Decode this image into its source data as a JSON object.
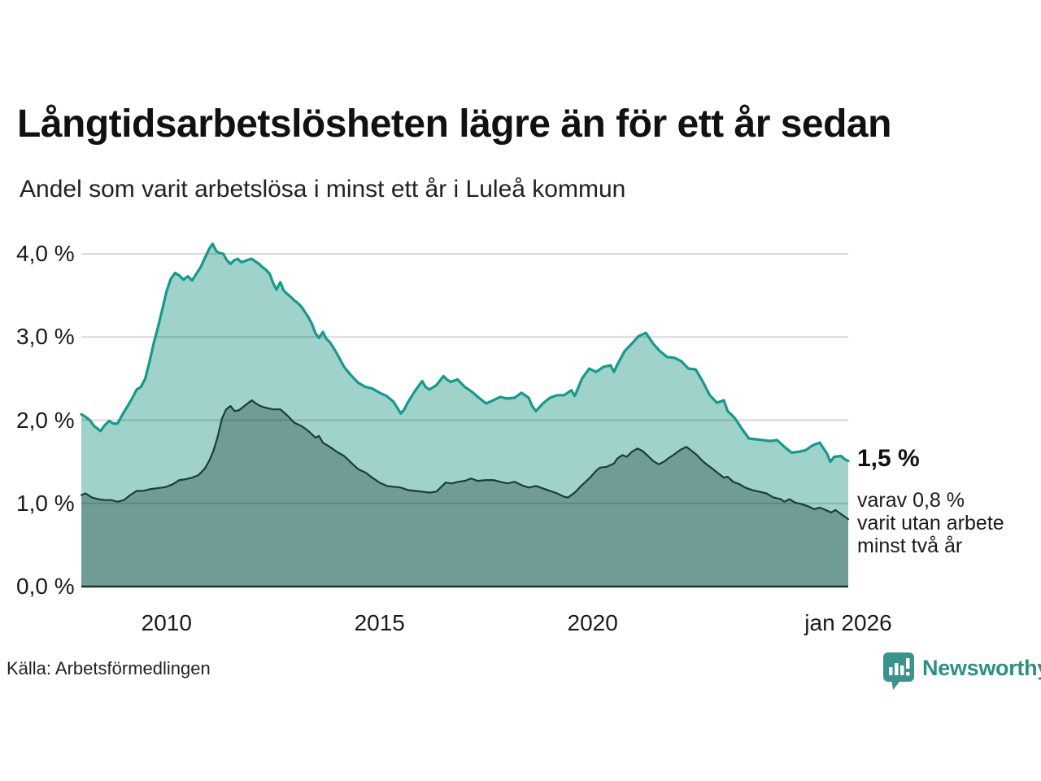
{
  "header": {
    "title": "Långtidsarbetslösheten lägre än för ett år sedan",
    "subtitle": "Andel som varit arbetslösa i minst ett år i Luleå kommun"
  },
  "annotation": {
    "total_label": "1,5 %",
    "detail_lines": [
      "varav 0,8 %",
      "varit utan arbete",
      "minst två år"
    ]
  },
  "footer": {
    "source": "Källa: Arbetsförmedlingen",
    "brand": "Newsworthy",
    "brand_icon": "newsworthy-bubble-barchart-icon",
    "brand_color": "#2e8f86",
    "brand_bubble_color": "#3a948b"
  },
  "colors": {
    "background": "#ffffff",
    "grid": "rgba(0,0,0,0.15)",
    "baseline": "#223332",
    "text": "#1a1a1a"
  },
  "chart_data": {
    "type": "area",
    "title": "Långtidsarbetslösheten lägre än för ett år sedan",
    "subtitle": "Andel som varit arbetslösa i minst ett år i Luleå kommun",
    "unit": "%",
    "xlabel": "",
    "ylabel": "",
    "xlim": [
      2008.0,
      2026.0
    ],
    "ylim": [
      0,
      4.3
    ],
    "grid": true,
    "legend_position": "none",
    "x_ticks": [
      {
        "year": 2010.0,
        "label": "2010"
      },
      {
        "year": 2015.0,
        "label": "2015"
      },
      {
        "year": 2020.0,
        "label": "2020"
      },
      {
        "year": 2026.0,
        "label": "jan 2026"
      }
    ],
    "y_ticks": [
      {
        "value": 0,
        "label": "0,0 %"
      },
      {
        "value": 1,
        "label": "1,0 %"
      },
      {
        "value": 2,
        "label": "2,0 %"
      },
      {
        "value": 3,
        "label": "3,0 %"
      },
      {
        "value": 4,
        "label": "4,0 %"
      }
    ],
    "series": [
      {
        "name": "Arbetslösa minst ett år",
        "end_value_label": "1,5 %",
        "line_color": "#17998b",
        "fill_color": "#9fd2ca",
        "line_width": 3.2,
        "points": [
          [
            2008.0,
            2.07
          ],
          [
            2008.1,
            2.04
          ],
          [
            2008.2,
            2.0
          ],
          [
            2008.3,
            1.93
          ],
          [
            2008.45,
            1.87
          ],
          [
            2008.55,
            1.94
          ],
          [
            2008.65,
            1.99
          ],
          [
            2008.75,
            1.96
          ],
          [
            2008.85,
            1.96
          ],
          [
            2009.0,
            2.1
          ],
          [
            2009.1,
            2.18
          ],
          [
            2009.2,
            2.27
          ],
          [
            2009.3,
            2.37
          ],
          [
            2009.4,
            2.4
          ],
          [
            2009.5,
            2.5
          ],
          [
            2009.6,
            2.7
          ],
          [
            2009.7,
            2.93
          ],
          [
            2009.8,
            3.12
          ],
          [
            2009.9,
            3.33
          ],
          [
            2010.0,
            3.55
          ],
          [
            2010.1,
            3.7
          ],
          [
            2010.2,
            3.77
          ],
          [
            2010.3,
            3.74
          ],
          [
            2010.4,
            3.69
          ],
          [
            2010.5,
            3.73
          ],
          [
            2010.6,
            3.68
          ],
          [
            2010.7,
            3.76
          ],
          [
            2010.8,
            3.84
          ],
          [
            2010.9,
            3.95
          ],
          [
            2011.0,
            4.06
          ],
          [
            2011.08,
            4.12
          ],
          [
            2011.17,
            4.03
          ],
          [
            2011.25,
            4.01
          ],
          [
            2011.33,
            4.0
          ],
          [
            2011.42,
            3.92
          ],
          [
            2011.5,
            3.88
          ],
          [
            2011.58,
            3.92
          ],
          [
            2011.67,
            3.94
          ],
          [
            2011.75,
            3.9
          ],
          [
            2011.83,
            3.91
          ],
          [
            2011.92,
            3.93
          ],
          [
            2012.0,
            3.94
          ],
          [
            2012.08,
            3.91
          ],
          [
            2012.17,
            3.88
          ],
          [
            2012.25,
            3.84
          ],
          [
            2012.33,
            3.81
          ],
          [
            2012.42,
            3.76
          ],
          [
            2012.5,
            3.65
          ],
          [
            2012.58,
            3.57
          ],
          [
            2012.67,
            3.66
          ],
          [
            2012.75,
            3.56
          ],
          [
            2012.83,
            3.52
          ],
          [
            2012.92,
            3.48
          ],
          [
            2013.0,
            3.44
          ],
          [
            2013.08,
            3.41
          ],
          [
            2013.17,
            3.36
          ],
          [
            2013.25,
            3.3
          ],
          [
            2013.33,
            3.24
          ],
          [
            2013.42,
            3.15
          ],
          [
            2013.5,
            3.04
          ],
          [
            2013.58,
            2.99
          ],
          [
            2013.67,
            3.06
          ],
          [
            2013.75,
            2.98
          ],
          [
            2013.83,
            2.94
          ],
          [
            2013.92,
            2.87
          ],
          [
            2014.0,
            2.8
          ],
          [
            2014.17,
            2.64
          ],
          [
            2014.33,
            2.54
          ],
          [
            2014.5,
            2.45
          ],
          [
            2014.67,
            2.4
          ],
          [
            2014.83,
            2.38
          ],
          [
            2015.0,
            2.33
          ],
          [
            2015.17,
            2.29
          ],
          [
            2015.33,
            2.22
          ],
          [
            2015.5,
            2.08
          ],
          [
            2015.58,
            2.13
          ],
          [
            2015.67,
            2.22
          ],
          [
            2015.83,
            2.35
          ],
          [
            2016.0,
            2.47
          ],
          [
            2016.08,
            2.4
          ],
          [
            2016.17,
            2.37
          ],
          [
            2016.33,
            2.42
          ],
          [
            2016.5,
            2.53
          ],
          [
            2016.58,
            2.49
          ],
          [
            2016.67,
            2.46
          ],
          [
            2016.83,
            2.49
          ],
          [
            2017.0,
            2.4
          ],
          [
            2017.17,
            2.34
          ],
          [
            2017.33,
            2.27
          ],
          [
            2017.5,
            2.2
          ],
          [
            2017.67,
            2.24
          ],
          [
            2017.83,
            2.28
          ],
          [
            2018.0,
            2.26
          ],
          [
            2018.17,
            2.27
          ],
          [
            2018.33,
            2.33
          ],
          [
            2018.5,
            2.27
          ],
          [
            2018.58,
            2.17
          ],
          [
            2018.67,
            2.11
          ],
          [
            2018.83,
            2.2
          ],
          [
            2019.0,
            2.27
          ],
          [
            2019.17,
            2.3
          ],
          [
            2019.33,
            2.3
          ],
          [
            2019.5,
            2.36
          ],
          [
            2019.58,
            2.29
          ],
          [
            2019.75,
            2.5
          ],
          [
            2019.92,
            2.62
          ],
          [
            2020.08,
            2.58
          ],
          [
            2020.25,
            2.64
          ],
          [
            2020.42,
            2.66
          ],
          [
            2020.5,
            2.58
          ],
          [
            2020.58,
            2.67
          ],
          [
            2020.75,
            2.83
          ],
          [
            2020.92,
            2.92
          ],
          [
            2021.08,
            3.01
          ],
          [
            2021.25,
            3.05
          ],
          [
            2021.42,
            2.92
          ],
          [
            2021.58,
            2.83
          ],
          [
            2021.75,
            2.76
          ],
          [
            2021.92,
            2.75
          ],
          [
            2022.08,
            2.71
          ],
          [
            2022.25,
            2.62
          ],
          [
            2022.42,
            2.61
          ],
          [
            2022.58,
            2.47
          ],
          [
            2022.75,
            2.3
          ],
          [
            2022.92,
            2.21
          ],
          [
            2023.08,
            2.24
          ],
          [
            2023.17,
            2.11
          ],
          [
            2023.33,
            2.03
          ],
          [
            2023.5,
            1.9
          ],
          [
            2023.67,
            1.78
          ],
          [
            2023.83,
            1.77
          ],
          [
            2024.0,
            1.76
          ],
          [
            2024.17,
            1.75
          ],
          [
            2024.33,
            1.76
          ],
          [
            2024.5,
            1.68
          ],
          [
            2024.67,
            1.61
          ],
          [
            2024.83,
            1.62
          ],
          [
            2025.0,
            1.64
          ],
          [
            2025.17,
            1.7
          ],
          [
            2025.33,
            1.73
          ],
          [
            2025.5,
            1.6
          ],
          [
            2025.58,
            1.5
          ],
          [
            2025.67,
            1.56
          ],
          [
            2025.83,
            1.57
          ],
          [
            2025.92,
            1.53
          ],
          [
            2026.0,
            1.51
          ]
        ]
      },
      {
        "name": "Varit utan arbete minst två år",
        "end_value_label": "0,8 %",
        "line_color": "#1e3b38",
        "fill_color": "#6f9d96",
        "line_width": 2.2,
        "points": [
          [
            2008.0,
            1.1
          ],
          [
            2008.1,
            1.12
          ],
          [
            2008.25,
            1.07
          ],
          [
            2008.4,
            1.05
          ],
          [
            2008.55,
            1.04
          ],
          [
            2008.7,
            1.04
          ],
          [
            2008.85,
            1.02
          ],
          [
            2009.0,
            1.04
          ],
          [
            2009.15,
            1.1
          ],
          [
            2009.3,
            1.15
          ],
          [
            2009.45,
            1.15
          ],
          [
            2009.6,
            1.17
          ],
          [
            2009.75,
            1.18
          ],
          [
            2009.9,
            1.19
          ],
          [
            2010.0,
            1.2
          ],
          [
            2010.15,
            1.23
          ],
          [
            2010.3,
            1.28
          ],
          [
            2010.45,
            1.29
          ],
          [
            2010.6,
            1.31
          ],
          [
            2010.75,
            1.34
          ],
          [
            2010.9,
            1.42
          ],
          [
            2011.0,
            1.51
          ],
          [
            2011.1,
            1.63
          ],
          [
            2011.2,
            1.8
          ],
          [
            2011.3,
            2.02
          ],
          [
            2011.4,
            2.13
          ],
          [
            2011.5,
            2.17
          ],
          [
            2011.6,
            2.11
          ],
          [
            2011.7,
            2.12
          ],
          [
            2011.8,
            2.16
          ],
          [
            2011.9,
            2.2
          ],
          [
            2012.0,
            2.24
          ],
          [
            2012.1,
            2.2
          ],
          [
            2012.2,
            2.17
          ],
          [
            2012.33,
            2.15
          ],
          [
            2012.5,
            2.13
          ],
          [
            2012.67,
            2.13
          ],
          [
            2012.83,
            2.06
          ],
          [
            2013.0,
            1.97
          ],
          [
            2013.17,
            1.93
          ],
          [
            2013.33,
            1.87
          ],
          [
            2013.5,
            1.79
          ],
          [
            2013.58,
            1.81
          ],
          [
            2013.67,
            1.73
          ],
          [
            2013.83,
            1.68
          ],
          [
            2014.0,
            1.62
          ],
          [
            2014.17,
            1.57
          ],
          [
            2014.33,
            1.49
          ],
          [
            2014.5,
            1.41
          ],
          [
            2014.67,
            1.37
          ],
          [
            2014.83,
            1.31
          ],
          [
            2015.0,
            1.25
          ],
          [
            2015.17,
            1.21
          ],
          [
            2015.33,
            1.2
          ],
          [
            2015.5,
            1.19
          ],
          [
            2015.67,
            1.16
          ],
          [
            2015.83,
            1.15
          ],
          [
            2016.0,
            1.14
          ],
          [
            2016.17,
            1.13
          ],
          [
            2016.33,
            1.14
          ],
          [
            2016.45,
            1.2
          ],
          [
            2016.55,
            1.25
          ],
          [
            2016.7,
            1.24
          ],
          [
            2016.85,
            1.26
          ],
          [
            2017.0,
            1.27
          ],
          [
            2017.15,
            1.3
          ],
          [
            2017.3,
            1.27
          ],
          [
            2017.5,
            1.28
          ],
          [
            2017.67,
            1.28
          ],
          [
            2017.83,
            1.26
          ],
          [
            2018.0,
            1.24
          ],
          [
            2018.17,
            1.26
          ],
          [
            2018.33,
            1.22
          ],
          [
            2018.5,
            1.19
          ],
          [
            2018.67,
            1.21
          ],
          [
            2018.83,
            1.18
          ],
          [
            2019.0,
            1.15
          ],
          [
            2019.17,
            1.12
          ],
          [
            2019.33,
            1.08
          ],
          [
            2019.42,
            1.07
          ],
          [
            2019.58,
            1.13
          ],
          [
            2019.75,
            1.22
          ],
          [
            2019.92,
            1.3
          ],
          [
            2020.08,
            1.39
          ],
          [
            2020.17,
            1.43
          ],
          [
            2020.33,
            1.44
          ],
          [
            2020.5,
            1.48
          ],
          [
            2020.58,
            1.54
          ],
          [
            2020.7,
            1.58
          ],
          [
            2020.8,
            1.56
          ],
          [
            2020.92,
            1.62
          ],
          [
            2021.05,
            1.66
          ],
          [
            2021.17,
            1.63
          ],
          [
            2021.3,
            1.57
          ],
          [
            2021.42,
            1.51
          ],
          [
            2021.55,
            1.47
          ],
          [
            2021.67,
            1.5
          ],
          [
            2021.8,
            1.55
          ],
          [
            2021.92,
            1.59
          ],
          [
            2022.05,
            1.64
          ],
          [
            2022.2,
            1.68
          ],
          [
            2022.33,
            1.63
          ],
          [
            2022.45,
            1.58
          ],
          [
            2022.58,
            1.51
          ],
          [
            2022.7,
            1.46
          ],
          [
            2022.83,
            1.41
          ],
          [
            2022.95,
            1.36
          ],
          [
            2023.08,
            1.31
          ],
          [
            2023.17,
            1.32
          ],
          [
            2023.3,
            1.26
          ],
          [
            2023.45,
            1.23
          ],
          [
            2023.58,
            1.19
          ],
          [
            2023.75,
            1.16
          ],
          [
            2023.92,
            1.14
          ],
          [
            2024.08,
            1.12
          ],
          [
            2024.25,
            1.07
          ],
          [
            2024.42,
            1.05
          ],
          [
            2024.5,
            1.02
          ],
          [
            2024.62,
            1.05
          ],
          [
            2024.75,
            1.01
          ],
          [
            2024.92,
            0.99
          ],
          [
            2025.08,
            0.96
          ],
          [
            2025.2,
            0.93
          ],
          [
            2025.33,
            0.95
          ],
          [
            2025.47,
            0.92
          ],
          [
            2025.6,
            0.89
          ],
          [
            2025.7,
            0.92
          ],
          [
            2025.83,
            0.87
          ],
          [
            2025.92,
            0.84
          ],
          [
            2026.0,
            0.81
          ]
        ]
      }
    ]
  }
}
